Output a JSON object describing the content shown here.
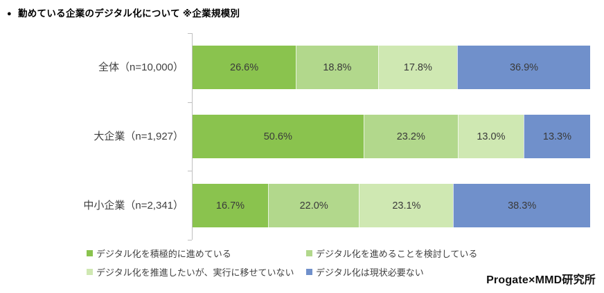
{
  "title": {
    "bullet": "●",
    "text": "勤めている企業のデジタル化について ※企業規模別"
  },
  "credit": "Progate×MMD研究所",
  "colors": {
    "axis": "#bfbfbf",
    "label_text": "#3f3f3f",
    "series": [
      "#8ac34e",
      "#b2d88c",
      "#cfe8b2",
      "#7090cb"
    ]
  },
  "chart_data": {
    "type": "bar",
    "orientation": "horizontal",
    "stacked": true,
    "unit": "%",
    "xlim": [
      0,
      100
    ],
    "grid": false,
    "legend_position": "bottom",
    "categories": [
      "全体（n=10,000）",
      "大企業（n=1,927）",
      "中小企業（n=2,341）"
    ],
    "series": [
      {
        "name": "デジタル化を積極的に進めている",
        "color": "#8ac34e",
        "values": [
          26.6,
          50.6,
          16.7
        ]
      },
      {
        "name": "デジタル化を進めることを検討している",
        "color": "#b2d88c",
        "values": [
          18.8,
          23.2,
          22.0
        ]
      },
      {
        "name": "デジタル化を推進したいが、実行に移せていない",
        "color": "#cfe8b2",
        "values": [
          17.8,
          13.0,
          23.1
        ]
      },
      {
        "name": "デジタル化は現状必要ない",
        "color": "#7090cb",
        "values": [
          36.9,
          13.3,
          38.3
        ]
      }
    ],
    "value_labels": [
      [
        "26.6%",
        "18.8%",
        "17.8%",
        "36.9%"
      ],
      [
        "50.6%",
        "23.2%",
        "13.0%",
        "13.3%"
      ],
      [
        "16.7%",
        "22.0%",
        "23.1%",
        "38.3%"
      ]
    ]
  }
}
